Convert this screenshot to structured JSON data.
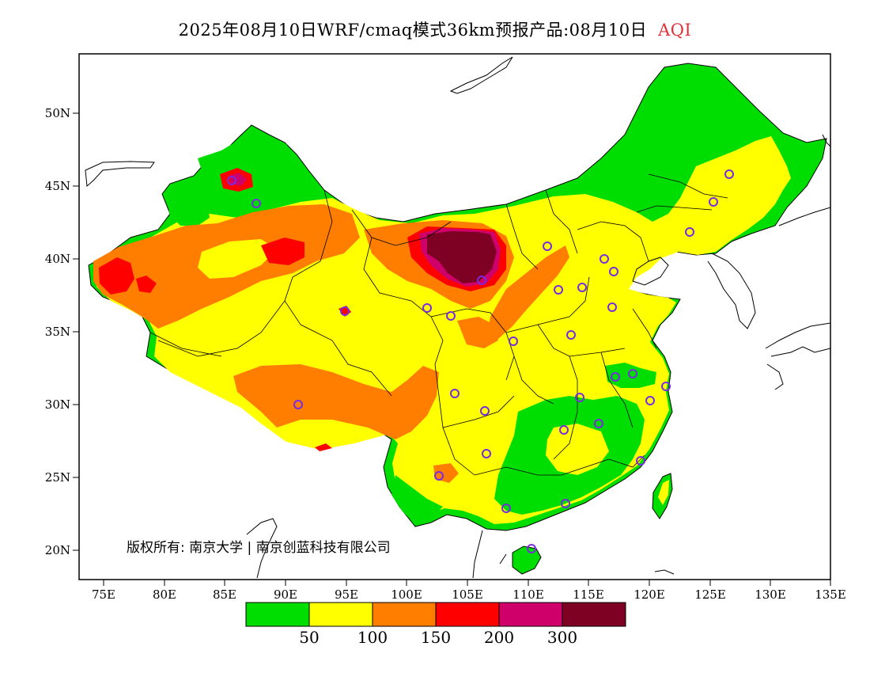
{
  "title": {
    "text": "2025年08月10日WRF/cmaq模式36km预报产品:08月10日",
    "accent_text": "AQI",
    "accent_color": "#e0303a"
  },
  "map": {
    "lon_labels": [
      "75E",
      "80E",
      "85E",
      "90E",
      "95E",
      "100E",
      "105E",
      "110E",
      "115E",
      "120E",
      "125E",
      "130E",
      "135E"
    ],
    "lat_labels": [
      "50N",
      "45N",
      "40N",
      "35N",
      "30N",
      "25N",
      "20N"
    ],
    "copyright_text": "版权所有: 南京大学 | 南京创蓝科技有限公司",
    "site_marker_color": "#7a2be2"
  },
  "legend": {
    "colors": [
      "#00dd00",
      "#ffff00",
      "#ff7e00",
      "#ff0000",
      "#d0006a",
      "#7e0023"
    ],
    "labels": [
      "50",
      "100",
      "150",
      "200",
      "300"
    ]
  }
}
